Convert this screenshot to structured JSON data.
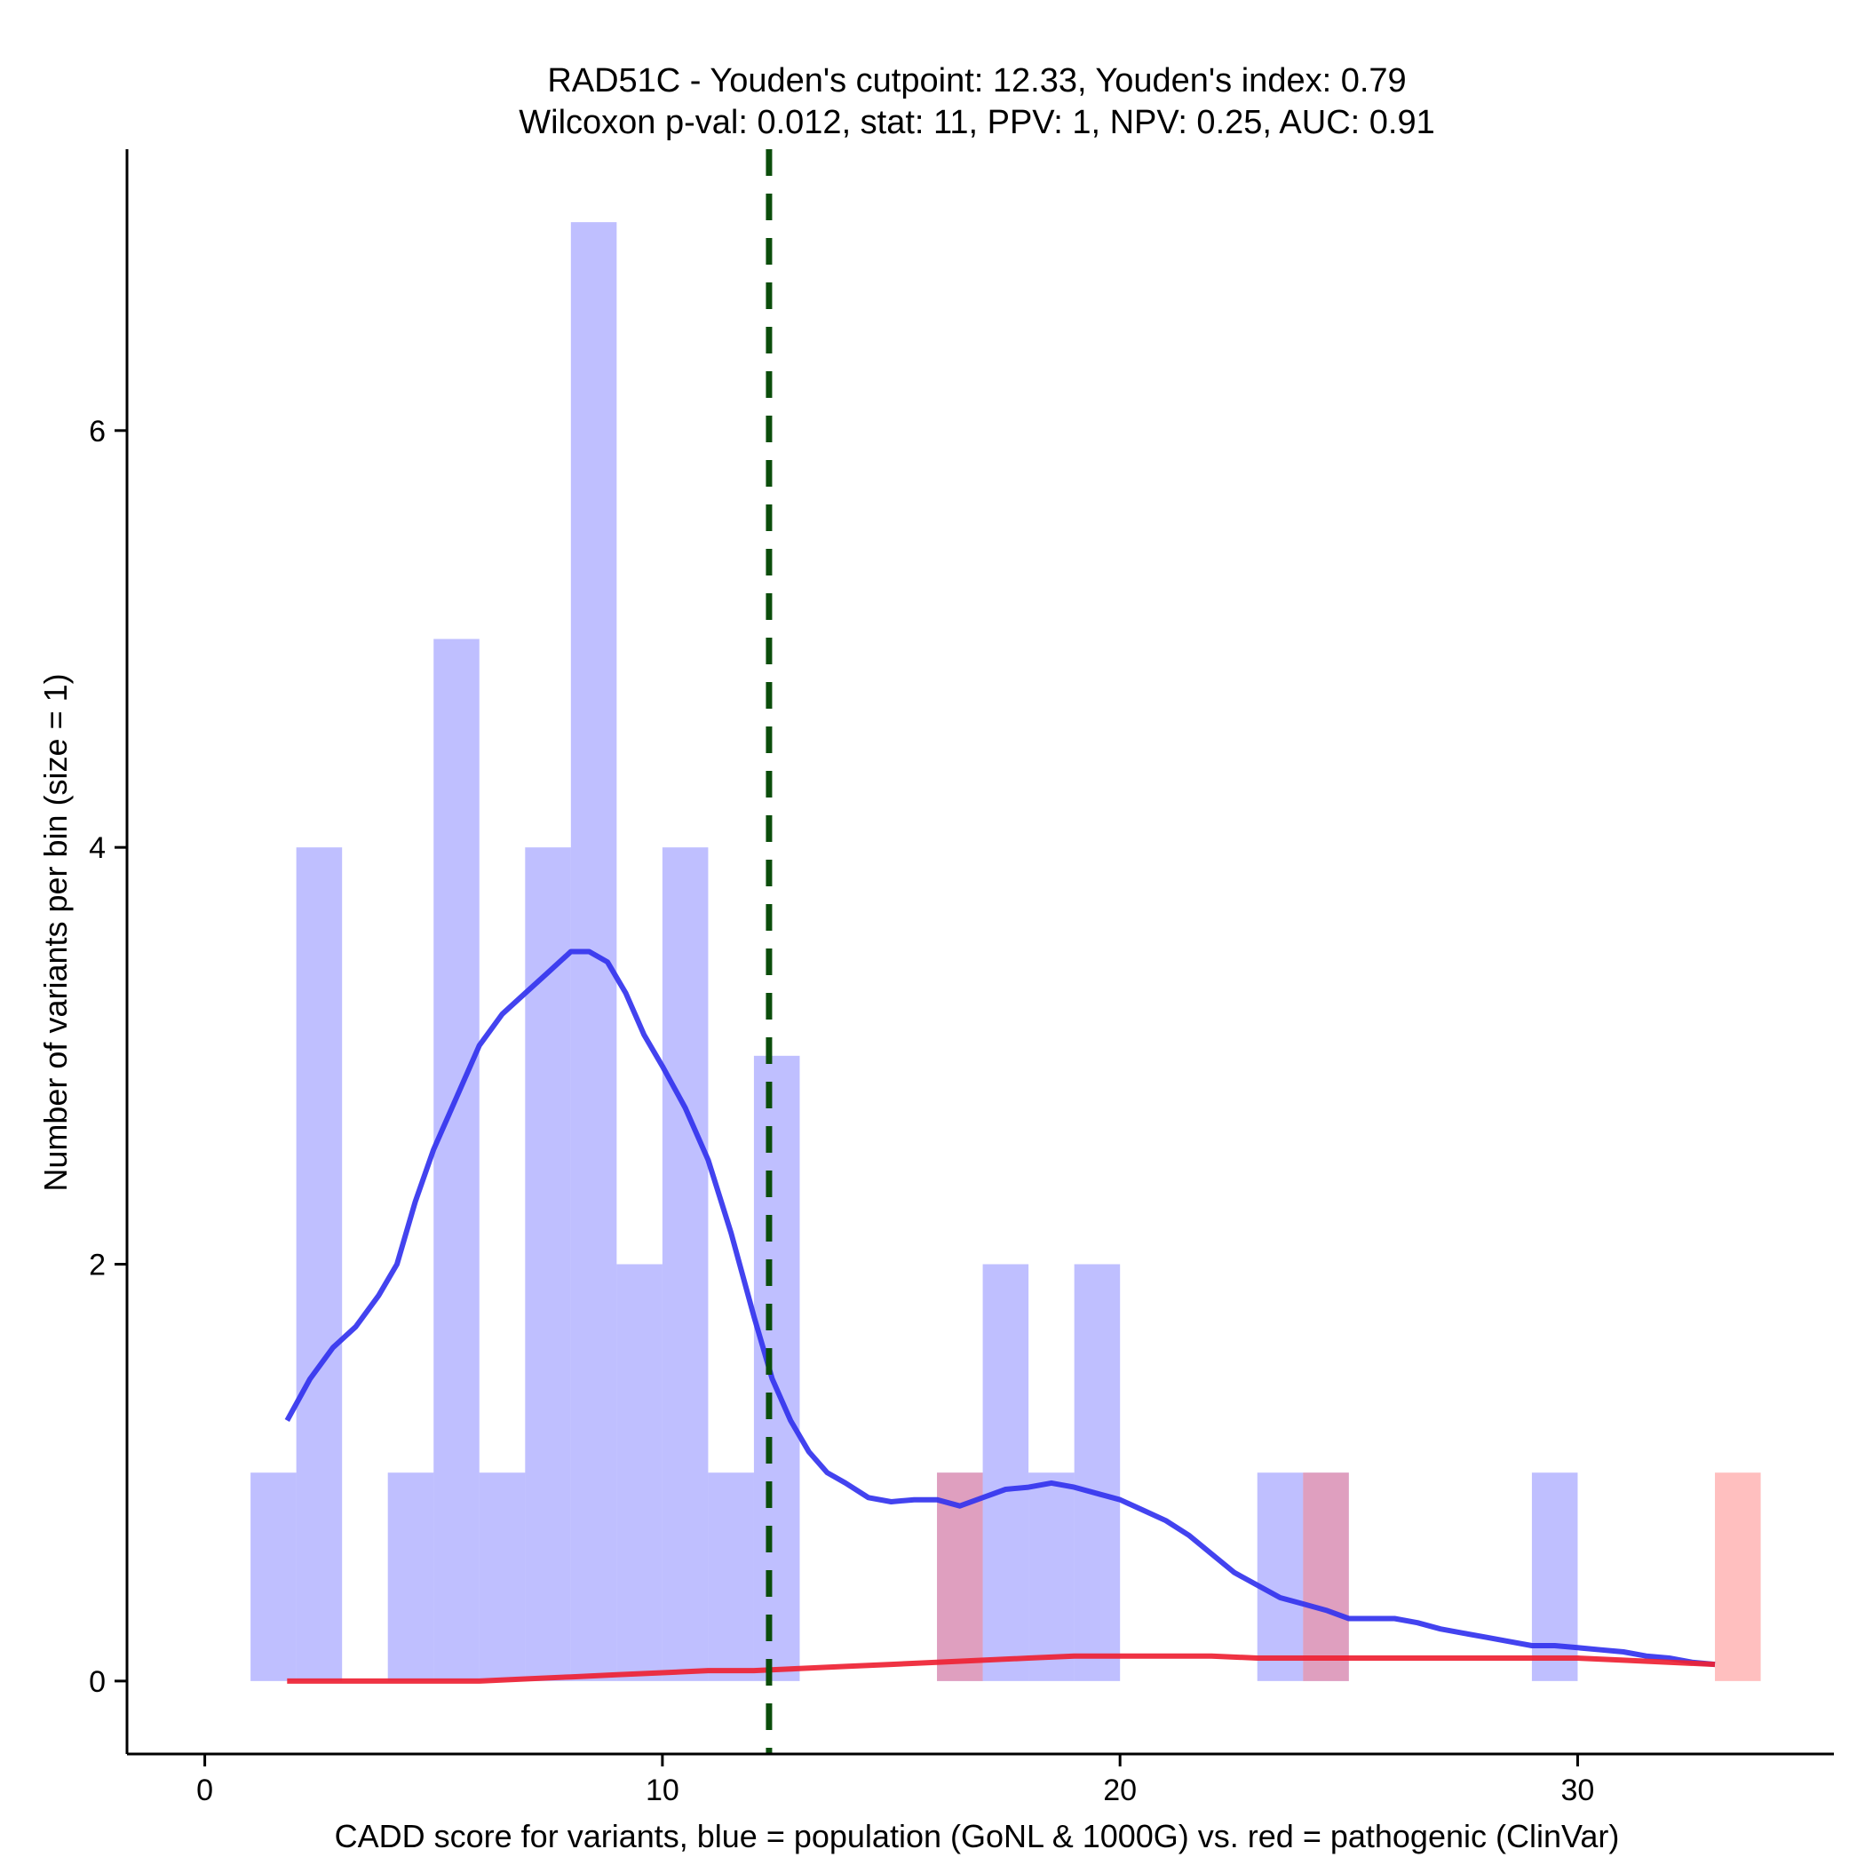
{
  "chart_data": {
    "type": "histogram",
    "title_line1": "RAD51C - Youden's cutpoint: 12.33, Youden's index: 0.79",
    "title_line2": "Wilcoxon p-val: 0.012, stat: 11, PPV: 1, NPV: 0.25, AUC: 0.91",
    "xlabel": "CADD score for variants, blue = population (GoNL & 1000G) vs. red = pathogenic (ClinVar)",
    "ylabel": "Number of variants per bin (size = 1)",
    "xlim": [
      -1.7,
      35.6
    ],
    "ylim": [
      -0.35,
      7.35
    ],
    "x_ticks": [
      0,
      10,
      20,
      30
    ],
    "x_tick_labels": [
      "0",
      "10",
      "20",
      "30"
    ],
    "y_ticks": [
      0,
      2,
      4,
      6
    ],
    "y_tick_labels": [
      "0",
      "2",
      "4",
      "6"
    ],
    "bin_width": 1,
    "cutpoint": 12.33,
    "cutpoint_color": "#0b4d0b",
    "series": [
      {
        "name": "population (GoNL & 1000G)",
        "color": "#8080ff",
        "opacity": 0.5,
        "bins": [
          {
            "start": 1,
            "count": 1
          },
          {
            "start": 2,
            "count": 4
          },
          {
            "start": 4,
            "count": 1
          },
          {
            "start": 5,
            "count": 5
          },
          {
            "start": 6,
            "count": 1
          },
          {
            "start": 7,
            "count": 4
          },
          {
            "start": 8,
            "count": 7
          },
          {
            "start": 9,
            "count": 2
          },
          {
            "start": 10,
            "count": 4
          },
          {
            "start": 11,
            "count": 1
          },
          {
            "start": 12,
            "count": 3
          },
          {
            "start": 16,
            "count": 1
          },
          {
            "start": 17,
            "count": 2
          },
          {
            "start": 18,
            "count": 1
          },
          {
            "start": 19,
            "count": 2
          },
          {
            "start": 23,
            "count": 1
          },
          {
            "start": 24,
            "count": 1
          },
          {
            "start": 29,
            "count": 1
          }
        ]
      },
      {
        "name": "pathogenic (ClinVar)",
        "color": "#ff8080",
        "opacity": 0.5,
        "bins": [
          {
            "start": 16,
            "count": 1
          },
          {
            "start": 24,
            "count": 1
          },
          {
            "start": 33,
            "count": 1
          }
        ]
      }
    ],
    "density_curves": [
      {
        "name": "population density",
        "color": "#3333ee",
        "x": [
          1.8,
          2.3,
          2.8,
          3.3,
          3.8,
          4.2,
          4.6,
          5.0,
          5.5,
          6.0,
          6.5,
          7.0,
          7.5,
          8.0,
          8.4,
          8.8,
          9.2,
          9.6,
          10.0,
          10.5,
          11.0,
          11.5,
          12.0,
          12.4,
          12.8,
          13.2,
          13.6,
          14.0,
          14.5,
          15.0,
          15.5,
          16.0,
          16.5,
          17.0,
          17.5,
          18.0,
          18.5,
          19.0,
          19.5,
          20.0,
          20.5,
          21.0,
          21.5,
          22.0,
          22.5,
          23.0,
          23.5,
          24.0,
          24.5,
          25.0,
          25.5,
          26.0,
          26.5,
          27.0,
          27.5,
          28.0,
          28.5,
          29.0,
          29.5,
          30.0,
          30.5,
          31.0,
          31.5,
          32.0,
          32.5,
          33.0
        ],
        "y": [
          1.25,
          1.45,
          1.6,
          1.7,
          1.85,
          2.0,
          2.3,
          2.55,
          2.8,
          3.05,
          3.2,
          3.3,
          3.4,
          3.5,
          3.5,
          3.45,
          3.3,
          3.1,
          2.95,
          2.75,
          2.5,
          2.15,
          1.75,
          1.45,
          1.25,
          1.1,
          1.0,
          0.95,
          0.88,
          0.86,
          0.87,
          0.87,
          0.84,
          0.88,
          0.92,
          0.93,
          0.95,
          0.93,
          0.9,
          0.87,
          0.82,
          0.77,
          0.7,
          0.61,
          0.52,
          0.46,
          0.4,
          0.37,
          0.34,
          0.3,
          0.3,
          0.3,
          0.28,
          0.25,
          0.23,
          0.21,
          0.19,
          0.17,
          0.17,
          0.16,
          0.15,
          0.14,
          0.12,
          0.11,
          0.09,
          0.08
        ],
        "stroke_width": 6
      },
      {
        "name": "pathogenic density",
        "color": "#ee2233",
        "x": [
          1.8,
          3.0,
          4.0,
          5.0,
          6.0,
          7.0,
          8.0,
          9.0,
          10.0,
          11.0,
          12.0,
          13.0,
          14.0,
          15.0,
          16.0,
          17.0,
          18.0,
          19.0,
          20.0,
          21.0,
          22.0,
          23.0,
          24.0,
          25.0,
          26.0,
          27.0,
          28.0,
          29.0,
          30.0,
          31.0,
          32.0,
          33.0
        ],
        "y": [
          0.0,
          0.0,
          0.0,
          0.0,
          0.0,
          0.01,
          0.02,
          0.03,
          0.04,
          0.05,
          0.05,
          0.06,
          0.07,
          0.08,
          0.09,
          0.1,
          0.11,
          0.12,
          0.12,
          0.12,
          0.12,
          0.11,
          0.11,
          0.11,
          0.11,
          0.11,
          0.11,
          0.11,
          0.11,
          0.1,
          0.09,
          0.08
        ],
        "stroke_width": 6
      }
    ]
  }
}
